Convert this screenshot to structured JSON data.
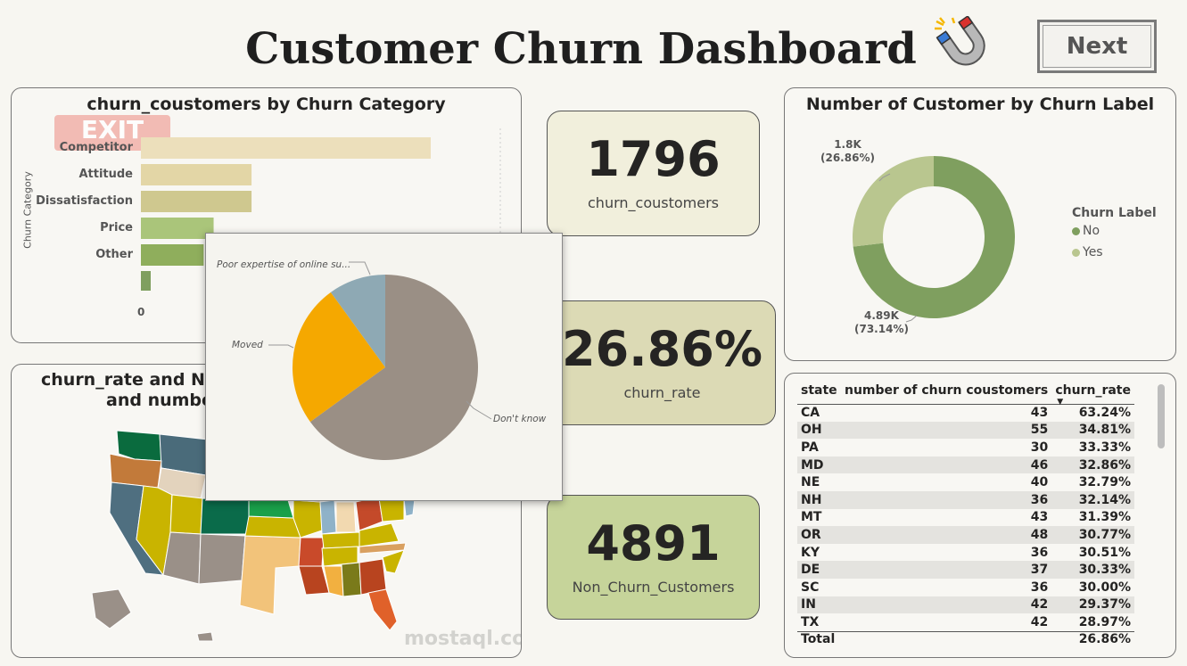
{
  "header": {
    "title": "Customer Churn Dashboard",
    "icon": "magnet-icon",
    "next_label": "Next"
  },
  "bar_card": {
    "title": "churn_coustomers by Churn Category",
    "ylabel": "Churn Category",
    "categories": [
      "Competitor",
      "Attitude",
      "Dissatisfaction",
      "Price",
      "Other"
    ],
    "x_tick": "0"
  },
  "map_card": {
    "title_line1": "churn_rate and N",
    "title_line2": "and numbe"
  },
  "kpis": {
    "churn_value": "1796",
    "churn_label": "churn_coustomers",
    "rate_value": "26.86%",
    "rate_label": "churn_rate",
    "non_churn_value": "4891",
    "non_churn_label": "Non_Churn_Customers"
  },
  "donut_card": {
    "title": "Number of Customer by Churn Label",
    "yes_value": "1.8K",
    "yes_pct": "(26.86%)",
    "no_value": "4.89K",
    "no_pct": "(73.14%)",
    "legend_title": "Churn Label",
    "legend_no": "No",
    "legend_yes": "Yes",
    "colors": {
      "no": "#7f9f5f",
      "yes": "#b9c68f"
    }
  },
  "table": {
    "headers": [
      "state",
      "number of churn coustomers",
      "churn_rate"
    ],
    "rows": [
      [
        "CA",
        "43",
        "63.24%"
      ],
      [
        "OH",
        "55",
        "34.81%"
      ],
      [
        "PA",
        "30",
        "33.33%"
      ],
      [
        "MD",
        "46",
        "32.86%"
      ],
      [
        "NE",
        "40",
        "32.79%"
      ],
      [
        "NH",
        "36",
        "32.14%"
      ],
      [
        "MT",
        "43",
        "31.39%"
      ],
      [
        "OR",
        "48",
        "30.77%"
      ],
      [
        "KY",
        "36",
        "30.51%"
      ],
      [
        "DE",
        "37",
        "30.33%"
      ],
      [
        "SC",
        "36",
        "30.00%"
      ],
      [
        "IN",
        "42",
        "29.37%"
      ],
      [
        "TX",
        "42",
        "28.97%"
      ]
    ],
    "total_label": "Total",
    "total_rate": "26.86%"
  },
  "tooltip_pie": {
    "labels": [
      "Poor expertise of online su...",
      "Moved",
      "Don't know"
    ],
    "colors": {
      "poor": "#8ea9b4",
      "moved": "#f5a800",
      "dont_know": "#9a8f85"
    }
  },
  "watermark": "mostaql.com",
  "chart_data": [
    {
      "type": "pie",
      "title": "Number of Customer by Churn Label",
      "legend_title": "Churn Label",
      "categories": [
        "No",
        "Yes"
      ],
      "values": [
        4891,
        1796
      ],
      "percent": [
        73.14,
        26.86
      ]
    },
    {
      "type": "pie",
      "categories": [
        "Don't know",
        "Moved",
        "Poor expertise of online su..."
      ],
      "values": [
        65,
        25,
        10
      ]
    },
    {
      "type": "bar",
      "title": "churn_coustomers by Churn Category",
      "ylabel": "Churn Category",
      "categories": [
        "Competitor",
        "Attitude",
        "Dissatisfaction",
        "Price",
        "Other"
      ],
      "values": [
        841,
        321,
        321,
        211,
        182
      ]
    }
  ]
}
